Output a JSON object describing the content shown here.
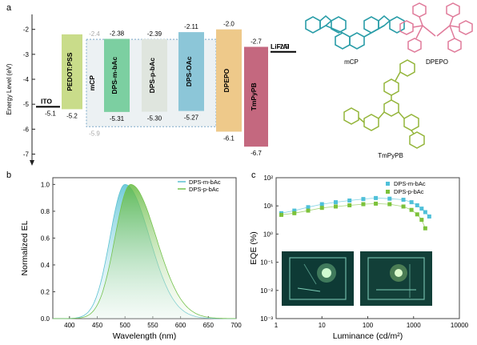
{
  "panels": {
    "a": "a",
    "b": "b",
    "c": "c"
  },
  "molecules": {
    "mcp": "mCP",
    "dpepo": "DPEPO",
    "tmpypb": "TmPyPB"
  },
  "chart_data": [
    {
      "type": "bar",
      "panel": "a",
      "ylabel": "Energy Level (eV)",
      "ylim": [
        -7.4,
        -1.4
      ],
      "yticks": [
        -2,
        -3,
        -4,
        -5,
        -6,
        -7
      ],
      "layers": [
        {
          "name": "ITO",
          "lumo": null,
          "homo": -5.1,
          "label_homo": "-5.1",
          "color": "#000000"
        },
        {
          "name": "PEDOT:PSS",
          "lumo": -2.2,
          "homo": -5.2,
          "label_homo": "-5.2",
          "color": "#c9dc8a"
        },
        {
          "name": "mCP",
          "lumo": -2.4,
          "homo": -5.9,
          "label_homo": "-5.9",
          "label_lumo": "-2.4",
          "color": "#dde6ea"
        },
        {
          "name": "DPS-m-bAc",
          "lumo": -2.38,
          "homo": -5.31,
          "label_lumo": "-2.38",
          "label_homo": "-5.31",
          "color": "#7ccfa1"
        },
        {
          "name": "DPS-p-bAc",
          "lumo": -2.39,
          "homo": -5.3,
          "label_lumo": "-2.39",
          "label_homo": "-5.30",
          "color": "#dfe5de"
        },
        {
          "name": "DPS-OAc",
          "lumo": -2.11,
          "homo": -5.27,
          "label_lumo": "-2.11",
          "label_homo": "-5.27",
          "color": "#8cc6d8"
        },
        {
          "name": "DPEPO",
          "lumo": -2.0,
          "homo": -6.1,
          "label_lumo": "-2.0",
          "label_homo": "-6.1",
          "color": "#eec98a"
        },
        {
          "name": "TmPyPB",
          "lumo": -2.7,
          "homo": -6.7,
          "label_lumo": "-2.7",
          "label_homo": "-6.7",
          "color": "#c4687f"
        },
        {
          "name": "LiF/Al",
          "lumo": -2.9,
          "homo": null,
          "label_lumo": "-2.9",
          "color": "#000000"
        }
      ]
    },
    {
      "type": "area",
      "panel": "b",
      "xlabel": "Wavelength (nm)",
      "ylabel": "Normalized EL",
      "xlim": [
        370,
        700
      ],
      "ylim": [
        0,
        1.05
      ],
      "xticks": [
        400,
        450,
        500,
        550,
        600,
        650,
        700
      ],
      "yticks": [
        0.0,
        0.2,
        0.4,
        0.6,
        0.8,
        1.0
      ],
      "series": [
        {
          "name": "DPS-m-bAc",
          "peak": 500,
          "sigma_left": 27,
          "sigma_right": 44,
          "color": "#5bc1d1"
        },
        {
          "name": "DPS-p-bAc",
          "peak": 510,
          "sigma_left": 28,
          "sigma_right": 46,
          "color": "#74c24c"
        }
      ]
    },
    {
      "type": "scatter",
      "panel": "c",
      "xlabel": "Luminance (cd/m²)",
      "ylabel": "EQE (%)",
      "xscale": "log",
      "yscale": "log",
      "xlim": [
        1,
        10000
      ],
      "ylim": [
        0.001,
        100
      ],
      "xticks": [
        "1",
        "10",
        "100",
        "1000",
        "10000"
      ],
      "yticks": [
        "10⁻³",
        "10⁻²",
        "10⁻¹",
        "10⁰",
        "10¹",
        "10²"
      ],
      "legend_position": "top-right",
      "series": [
        {
          "name": "DPS-m-bAc",
          "color": "#4fc0d9",
          "marker": "square",
          "x": [
            1.3,
            2.5,
            5,
            10,
            20,
            40,
            80,
            150,
            300,
            600,
            900,
            1200,
            1500,
            1800,
            2200
          ],
          "y": [
            5.5,
            6.8,
            9,
            11.5,
            13.5,
            15.5,
            17.5,
            19,
            18,
            16.5,
            13.5,
            10.5,
            8,
            6,
            4.2
          ]
        },
        {
          "name": "DPS-p-bAc",
          "color": "#7cc23a",
          "marker": "square",
          "x": [
            1.3,
            2.5,
            5,
            10,
            20,
            40,
            80,
            150,
            300,
            600,
            900,
            1200,
            1500,
            1800
          ],
          "y": [
            4.8,
            5.5,
            6.8,
            8.5,
            9.5,
            10.5,
            11.5,
            12,
            11.5,
            9.5,
            7.2,
            5,
            3.2,
            1.6
          ]
        }
      ]
    }
  ]
}
